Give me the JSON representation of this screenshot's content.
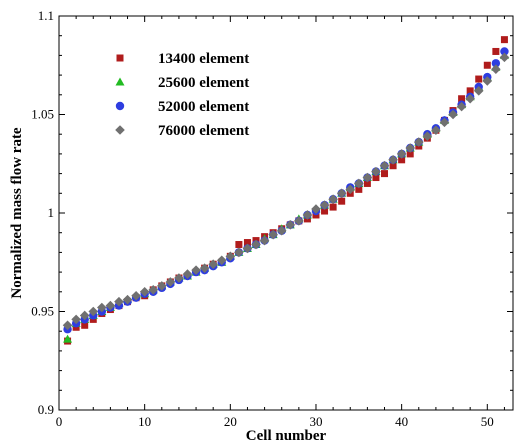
{
  "chart_data": {
    "type": "scatter",
    "title": "",
    "xlabel": "Cell number",
    "ylabel": "Normalized mass flow rate",
    "xlim": [
      0,
      53
    ],
    "ylim": [
      0.9,
      1.1
    ],
    "xticks": [
      0,
      10,
      20,
      30,
      40,
      50
    ],
    "yticks": [
      0.9,
      0.95,
      1,
      1.05,
      1.1
    ],
    "ytick_labels": [
      "0.9",
      "0.95",
      "1",
      "1.05",
      "1.1"
    ],
    "grid": false,
    "legend": "top-left",
    "series": [
      {
        "name": "13400 element",
        "marker": "square",
        "color": "#b01c1c",
        "x": [
          1,
          2,
          3,
          4,
          5,
          6,
          7,
          8,
          9,
          10,
          11,
          12,
          13,
          14,
          15,
          16,
          17,
          18,
          19,
          20,
          21,
          22,
          23,
          24,
          25,
          26,
          27,
          28,
          29,
          30,
          31,
          32,
          33,
          34,
          35,
          36,
          37,
          38,
          39,
          40,
          41,
          42,
          43,
          44,
          45,
          46,
          47,
          48,
          49,
          50,
          51,
          52
        ],
        "y": [
          0.935,
          0.942,
          0.943,
          0.946,
          0.949,
          0.951,
          0.953,
          0.955,
          0.957,
          0.958,
          0.961,
          0.963,
          0.965,
          0.967,
          0.968,
          0.97,
          0.972,
          0.974,
          0.975,
          0.978,
          0.984,
          0.985,
          0.986,
          0.988,
          0.99,
          0.992,
          0.994,
          0.996,
          0.997,
          0.999,
          1.001,
          1.003,
          1.006,
          1.01,
          1.012,
          1.015,
          1.018,
          1.02,
          1.024,
          1.027,
          1.03,
          1.034,
          1.038,
          1.042,
          1.047,
          1.052,
          1.058,
          1.062,
          1.068,
          1.075,
          1.082,
          1.088
        ]
      },
      {
        "name": "25600 element",
        "marker": "triangle",
        "color": "#22bb22",
        "x": [
          1,
          2,
          3,
          4,
          5,
          6,
          7,
          8,
          9,
          10,
          11,
          12,
          13,
          14,
          15,
          16,
          17,
          18,
          19,
          20,
          21,
          22,
          23,
          24,
          25,
          26,
          27,
          28,
          29,
          30,
          31,
          32,
          33,
          34,
          35,
          36,
          37,
          38,
          39,
          40,
          41,
          42,
          43,
          44,
          45,
          46,
          47,
          48,
          49,
          50,
          51,
          52
        ],
        "y": [
          0.936,
          0.944,
          0.946,
          0.948,
          0.95,
          0.952,
          0.954,
          0.956,
          0.958,
          0.959,
          0.961,
          0.963,
          0.965,
          0.967,
          0.968,
          0.97,
          0.972,
          0.974,
          0.975,
          0.978,
          0.98,
          0.982,
          0.984,
          0.987,
          0.989,
          0.992,
          0.994,
          0.997,
          0.999,
          1.002,
          1.004,
          1.007,
          1.01,
          1.013,
          1.015,
          1.018,
          1.021,
          1.024,
          1.027,
          1.03,
          1.033,
          1.036,
          1.04,
          1.043,
          1.047,
          1.051,
          1.055,
          1.059,
          1.064,
          1.069,
          1.074,
          1.08
        ]
      },
      {
        "name": "52000 element",
        "marker": "circle",
        "color": "#2e3de0",
        "x": [
          1,
          2,
          3,
          4,
          5,
          6,
          7,
          8,
          9,
          10,
          11,
          12,
          13,
          14,
          15,
          16,
          17,
          18,
          19,
          20,
          21,
          22,
          23,
          24,
          25,
          26,
          27,
          28,
          29,
          30,
          31,
          32,
          33,
          34,
          35,
          36,
          37,
          38,
          39,
          40,
          41,
          42,
          43,
          44,
          45,
          46,
          47,
          48,
          49,
          50,
          51,
          52
        ],
        "y": [
          0.941,
          0.944,
          0.946,
          0.948,
          0.95,
          0.952,
          0.953,
          0.955,
          0.957,
          0.959,
          0.96,
          0.962,
          0.964,
          0.966,
          0.968,
          0.97,
          0.971,
          0.973,
          0.975,
          0.977,
          0.98,
          0.982,
          0.984,
          0.986,
          0.989,
          0.991,
          0.994,
          0.996,
          0.999,
          1.001,
          1.004,
          1.007,
          1.01,
          1.013,
          1.015,
          1.018,
          1.021,
          1.024,
          1.027,
          1.03,
          1.033,
          1.036,
          1.04,
          1.043,
          1.047,
          1.051,
          1.055,
          1.059,
          1.064,
          1.069,
          1.076,
          1.082
        ]
      },
      {
        "name": "76000 element",
        "marker": "diamond",
        "color": "#707070",
        "x": [
          1,
          2,
          3,
          4,
          5,
          6,
          7,
          8,
          9,
          10,
          11,
          12,
          13,
          14,
          15,
          16,
          17,
          18,
          19,
          20,
          21,
          22,
          23,
          24,
          25,
          26,
          27,
          28,
          29,
          30,
          31,
          32,
          33,
          34,
          35,
          36,
          37,
          38,
          39,
          40,
          41,
          42,
          43,
          44,
          45,
          46,
          47,
          48,
          49,
          50,
          51,
          52
        ],
        "y": [
          0.943,
          0.946,
          0.948,
          0.95,
          0.952,
          0.953,
          0.955,
          0.956,
          0.958,
          0.96,
          0.961,
          0.963,
          0.965,
          0.967,
          0.969,
          0.971,
          0.972,
          0.974,
          0.976,
          0.978,
          0.98,
          0.982,
          0.984,
          0.986,
          0.989,
          0.991,
          0.994,
          0.996,
          0.999,
          1.002,
          1.004,
          1.007,
          1.01,
          1.012,
          1.015,
          1.018,
          1.021,
          1.024,
          1.027,
          1.03,
          1.033,
          1.036,
          1.039,
          1.042,
          1.046,
          1.05,
          1.054,
          1.058,
          1.062,
          1.067,
          1.073,
          1.079
        ]
      }
    ]
  }
}
